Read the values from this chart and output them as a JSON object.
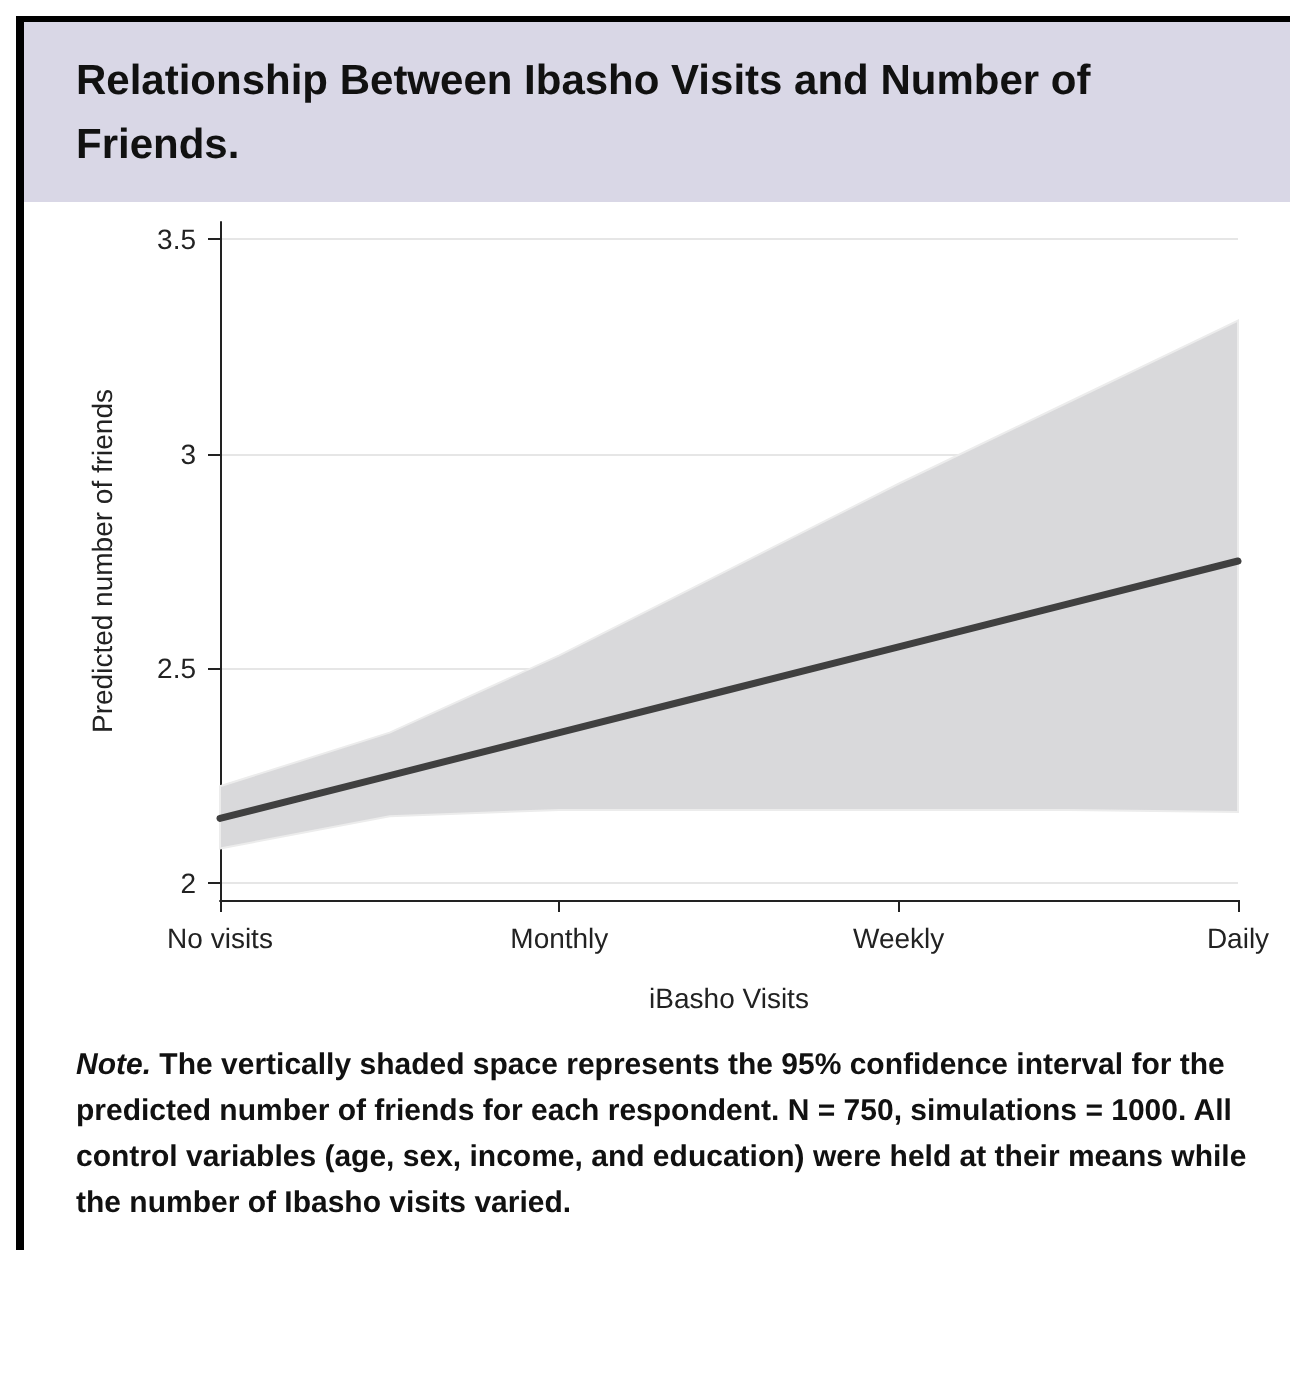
{
  "chart_data": {
    "type": "line",
    "title": "Relationship Between Ibasho Visits and Number of Friends.",
    "xlabel": "iBasho Visits",
    "ylabel": "Predicted number of friends",
    "categories": [
      "No visits",
      null,
      "Monthly",
      null,
      "Weekly",
      null,
      "Daily"
    ],
    "series": [
      {
        "color": "#404040",
        "values": [
          2.15,
          2.25,
          2.35,
          2.45,
          2.55,
          2.65,
          2.75
        ],
        "lower": [
          2.08,
          2.155,
          2.17,
          2.17,
          2.17,
          2.17,
          2.165
        ],
        "upper": [
          2.225,
          2.35,
          2.53,
          2.73,
          2.93,
          3.12,
          3.31
        ]
      }
    ],
    "ylim": [
      1.96,
      3.54
    ],
    "yticks": [
      2,
      2.5,
      3,
      3.5
    ],
    "grid": "y",
    "marker": "none",
    "line_style": "solid",
    "annotations": [
      "Note.",
      "The vertically shaded space represents the 95% confidence interval for the predicted number of friends for each respondent. N = 750, simulations = 1000. All control variables (age, sex, income, and education) were held at their means while the number of Ibasho visits varied."
    ]
  }
}
